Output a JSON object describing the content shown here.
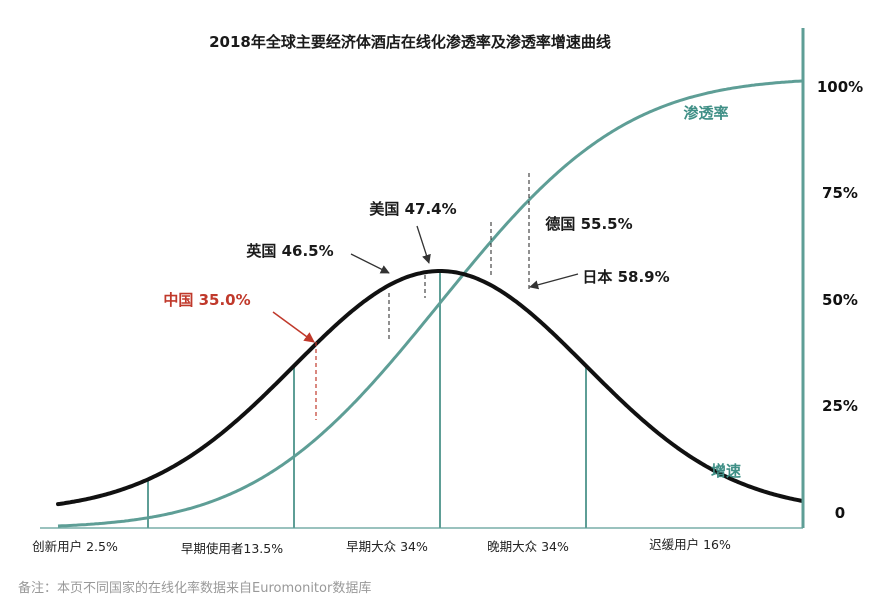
{
  "chart_data": {
    "type": "line",
    "title": "2018年全球主要经济体酒店在线化渗透率及渗透率增速曲线",
    "y_ticks": [
      "0",
      "25%",
      "50%",
      "75%",
      "100%"
    ],
    "ylim": [
      0,
      100
    ],
    "x_ticks": [
      "创新用户 2.5%",
      "早期使用者13.5%",
      "早期大众 34%",
      "晚期大众 34%",
      "迟缓用户 16%"
    ],
    "series": [
      {
        "name": "渗透率",
        "color": "#5e9e96"
      },
      {
        "name": "增速",
        "color": "#111111"
      }
    ],
    "annotations": [
      {
        "label": "中国 35.0%",
        "value": 35.0,
        "highlight": true,
        "color": "#c0392b"
      },
      {
        "label": "英国 46.5%",
        "value": 46.5,
        "highlight": false
      },
      {
        "label": "美国 47.4%",
        "value": 47.4,
        "highlight": false
      },
      {
        "label": "德国 55.5%",
        "value": 55.5,
        "highlight": false
      },
      {
        "label": "日本 58.9%",
        "value": 58.9,
        "highlight": false
      }
    ],
    "footnote": "备注：本页不同国家的在线化率数据来自Euromonitor数据库"
  }
}
